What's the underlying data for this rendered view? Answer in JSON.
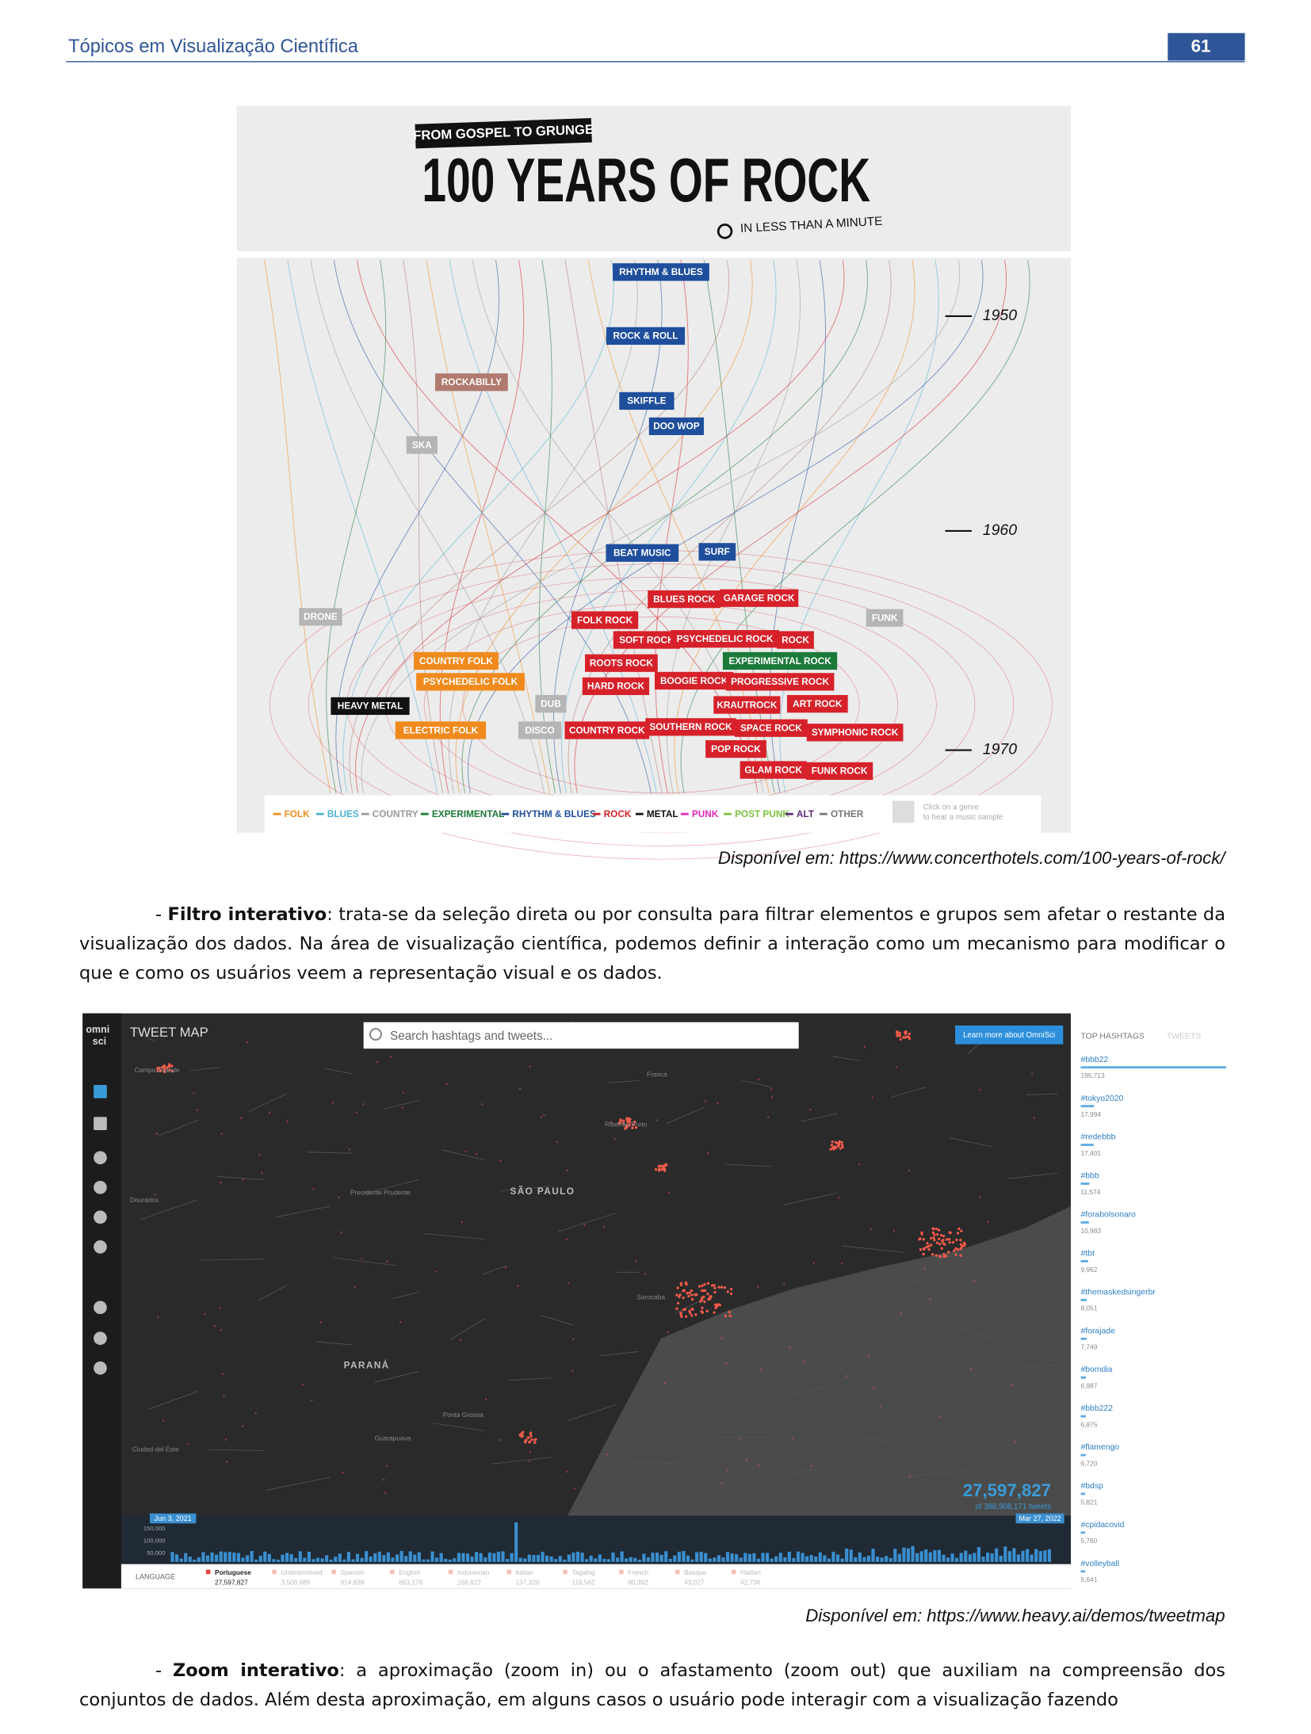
{
  "header": {
    "title": "Tópicos em Visualização Científica",
    "page_number": "61"
  },
  "figure_1": {
    "kicker": "FROM GOSPEL TO GRUNGE",
    "title": "100 YEARS OF ROCK",
    "subtitle": "IN LESS THAN A MINUTE",
    "years": [
      "1950",
      "1960",
      "1970"
    ],
    "genres": [
      {
        "label": "RHYTHM & BLUES",
        "color": "#1f4e9c"
      },
      {
        "label": "ROCK & ROLL",
        "color": "#1f4e9c"
      },
      {
        "label": "ROCKABILLY",
        "color": "#b07a6e"
      },
      {
        "label": "SKIFFLE",
        "color": "#1f4e9c"
      },
      {
        "label": "DOO WOP",
        "color": "#1f4e9c"
      },
      {
        "label": "SKA",
        "color": "#b5b5b5"
      },
      {
        "label": "BEAT MUSIC",
        "color": "#1f4e9c"
      },
      {
        "label": "SURF",
        "color": "#1f4e9c"
      },
      {
        "label": "DRONE",
        "color": "#b5b5b5"
      },
      {
        "label": "BLUES ROCK",
        "color": "#d7212a"
      },
      {
        "label": "GARAGE ROCK",
        "color": "#d7212a"
      },
      {
        "label": "FUNK",
        "color": "#b5b5b5"
      },
      {
        "label": "FOLK ROCK",
        "color": "#d7212a"
      },
      {
        "label": "SOFT ROCK",
        "color": "#d7212a"
      },
      {
        "label": "PSYCHEDELIC ROCK",
        "color": "#d7212a"
      },
      {
        "label": "ROCK",
        "color": "#d7212a"
      },
      {
        "label": "COUNTRY FOLK",
        "color": "#f08a1c"
      },
      {
        "label": "ROOTS ROCK",
        "color": "#d7212a"
      },
      {
        "label": "EXPERIMENTAL ROCK",
        "color": "#1b7a3a"
      },
      {
        "label": "PSYCHEDELIC FOLK",
        "color": "#f08a1c"
      },
      {
        "label": "HARD ROCK",
        "color": "#d7212a"
      },
      {
        "label": "BOOGIE ROCK",
        "color": "#d7212a"
      },
      {
        "label": "PROGRESSIVE ROCK",
        "color": "#d7212a"
      },
      {
        "label": "HEAVY METAL",
        "color": "#111111"
      },
      {
        "label": "DUB",
        "color": "#b5b5b5"
      },
      {
        "label": "KRAUTROCK",
        "color": "#d7212a"
      },
      {
        "label": "ART ROCK",
        "color": "#d7212a"
      },
      {
        "label": "ELECTRIC FOLK",
        "color": "#f08a1c"
      },
      {
        "label": "DISCO",
        "color": "#b5b5b5"
      },
      {
        "label": "COUNTRY ROCK",
        "color": "#d7212a"
      },
      {
        "label": "SOUTHERN ROCK",
        "color": "#d7212a"
      },
      {
        "label": "SPACE ROCK",
        "color": "#d7212a"
      },
      {
        "label": "SYMPHONIC ROCK",
        "color": "#d7212a"
      },
      {
        "label": "POP ROCK",
        "color": "#d7212a"
      },
      {
        "label": "GLAM ROCK",
        "color": "#d7212a"
      },
      {
        "label": "FUNK ROCK",
        "color": "#d7212a"
      }
    ],
    "legend": [
      {
        "label": "FOLK",
        "color": "#f08a1c"
      },
      {
        "label": "BLUES",
        "color": "#4ab3d6"
      },
      {
        "label": "COUNTRY",
        "color": "#999999"
      },
      {
        "label": "EXPERIMENTAL",
        "color": "#1b7a3a"
      },
      {
        "label": "RHYTHM & BLUES",
        "color": "#1f4e9c"
      },
      {
        "label": "ROCK",
        "color": "#d7212a"
      },
      {
        "label": "METAL",
        "color": "#111111"
      },
      {
        "label": "PUNK",
        "color": "#e02ab8"
      },
      {
        "label": "POST PUNK",
        "color": "#7cc23b"
      },
      {
        "label": "ALT",
        "color": "#5a2a7a"
      },
      {
        "label": "OTHER",
        "color": "#777777"
      }
    ],
    "hint": [
      "Click on a genre",
      "to hear a music sample"
    ]
  },
  "caption_1": "Disponível em: https://www.concerthotels.com/100-years-of-rock/",
  "paragraph_1": {
    "prefix": "- ",
    "term": "Filtro interativo",
    "text": ": trata-se da seleção direta ou por consulta para filtrar elementos e grupos sem afetar o restante da visualização dos dados. Na área de visualização científica, podemos definir a interação como um mecanismo para modificar o que e como os usuários veem a representação visual e os dados."
  },
  "figure_2": {
    "logo": [
      "omni",
      "sci"
    ],
    "app_title": "TWEET MAP",
    "search_placeholder": "Search hashtags and tweets...",
    "button": "Learn more about OmniSci",
    "tabs": [
      "TOP HASHTAGS",
      "TWEETS"
    ],
    "hashtags": [
      {
        "tag": "#bbb22",
        "count": "195,713"
      },
      {
        "tag": "#tokyo2020",
        "count": "17,994"
      },
      {
        "tag": "#redebbb",
        "count": "17,401"
      },
      {
        "tag": "#bbb",
        "count": "11,574"
      },
      {
        "tag": "#forabolsonaro",
        "count": "10,983"
      },
      {
        "tag": "#tbt",
        "count": "9,962"
      },
      {
        "tag": "#themaskedsingerbr",
        "count": "8,051"
      },
      {
        "tag": "#forajade",
        "count": "7,749"
      },
      {
        "tag": "#bomdia",
        "count": "6,987"
      },
      {
        "tag": "#bbb222",
        "count": "6,875"
      },
      {
        "tag": "#flamengo",
        "count": "6,720"
      },
      {
        "tag": "#bdsp",
        "count": "5,821"
      },
      {
        "tag": "#cpidacovid",
        "count": "5,760"
      },
      {
        "tag": "#volleyball",
        "count": "5,641"
      }
    ],
    "map_labels": [
      "Campo Grande",
      "Dourados",
      "Presidente Prudente",
      "SÃO PAULO",
      "Ribeirão Preto",
      "Franca",
      "Sorocaba",
      "PARANÁ",
      "Ponta Grossa",
      "Guarapuava",
      "Ciudad del Este"
    ],
    "total": "27,597,827",
    "total_note": "of 388,908,171 tweets",
    "date_start": "Jun 3, 2021",
    "date_end": "Mar 27, 2022",
    "timeline_ticks": [
      "150,000",
      "100,000",
      "50,000"
    ],
    "language_label": "LANGUAGE",
    "languages": [
      {
        "name": "Portuguese",
        "count": "27,597,827"
      },
      {
        "name": "Undetermined",
        "count": "3,500,889"
      },
      {
        "name": "Spanish",
        "count": "914,838"
      },
      {
        "name": "English",
        "count": "883,176"
      },
      {
        "name": "Indonesian",
        "count": "166,822"
      },
      {
        "name": "Italian",
        "count": "137,320"
      },
      {
        "name": "Tagalog",
        "count": "119,562"
      },
      {
        "name": "French",
        "count": "90,392"
      },
      {
        "name": "Basque",
        "count": "43,027"
      },
      {
        "name": "Haitian",
        "count": "42,736"
      }
    ]
  },
  "caption_2": "Disponível em: https://www.heavy.ai/demos/tweetmap",
  "paragraph_2": {
    "prefix": "- ",
    "term": "Zoom interativo",
    "text": ": a aproximação (zoom in) ou o afastamento (zoom out) que auxiliam na compreensão dos conjuntos de dados. Além desta aproximação, em alguns casos o usuário pode interagir com a visualização fazendo"
  }
}
